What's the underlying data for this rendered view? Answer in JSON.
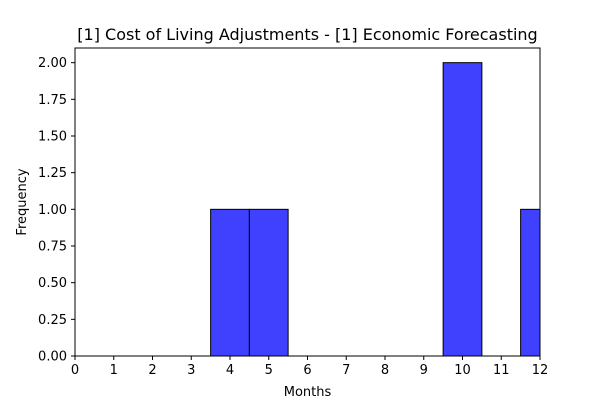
{
  "chart_data": {
    "type": "bar",
    "title": "[1] Cost of Living Adjustments - [1] Economic Forecasting",
    "xlabel": "Months",
    "ylabel": "Frequency",
    "xlim": [
      0,
      12
    ],
    "ylim": [
      0,
      2.1
    ],
    "x_ticks": [
      "0",
      "1",
      "2",
      "3",
      "4",
      "5",
      "6",
      "7",
      "8",
      "9",
      "10",
      "11",
      "12"
    ],
    "y_ticks": [
      "0.00",
      "0.25",
      "0.50",
      "0.75",
      "1.00",
      "1.25",
      "1.50",
      "1.75",
      "2.00"
    ],
    "bins": [
      {
        "start": 3.5,
        "end": 4.5,
        "value": 1
      },
      {
        "start": 4.5,
        "end": 5.5,
        "value": 1
      },
      {
        "start": 9.5,
        "end": 10.5,
        "value": 2
      },
      {
        "start": 11.5,
        "end": 12.5,
        "value": 1
      }
    ],
    "bar_color": "#4040ff",
    "edge_color": "#000000",
    "grid": false
  }
}
